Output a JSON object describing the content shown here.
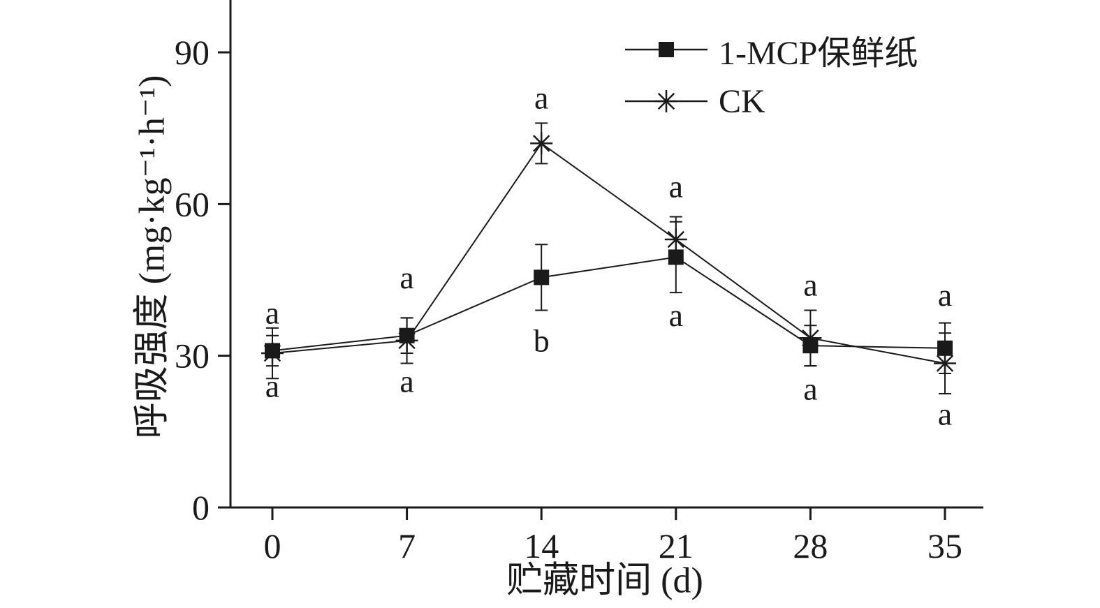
{
  "chart_data": {
    "type": "line",
    "title": "",
    "xlabel": "贮藏时间 (d)",
    "ylabel": "呼吸强度 (mg·kg⁻¹·h⁻¹)",
    "x": [
      0,
      7,
      14,
      21,
      28,
      35
    ],
    "xticks": [
      0,
      7,
      14,
      21,
      28,
      35
    ],
    "yticks": [
      0,
      30,
      60,
      90
    ],
    "ylim": [
      0,
      97
    ],
    "grid": false,
    "legend_position": "top-right",
    "axis_color": "#1a1a1a",
    "series": [
      {
        "name": "1-MCP保鲜纸",
        "marker": "square",
        "values": [
          31,
          34,
          45.5,
          49.5,
          32,
          31.5
        ],
        "errors": [
          3,
          3.5,
          6.5,
          7,
          4,
          5
        ]
      },
      {
        "name": "CK",
        "marker": "asterisk",
        "values": [
          30.5,
          33,
          72,
          53,
          33.5,
          28.5
        ],
        "errors": [
          5,
          4.5,
          4,
          4.5,
          5.5,
          6
        ]
      }
    ],
    "annotations": [
      {
        "x": 0,
        "y": 38.5,
        "text": "a"
      },
      {
        "x": 0,
        "y": 24,
        "text": "a"
      },
      {
        "x": 7,
        "y": 45.5,
        "text": "a"
      },
      {
        "x": 7,
        "y": 25,
        "text": "a"
      },
      {
        "x": 14,
        "y": 81,
        "text": "a"
      },
      {
        "x": 14,
        "y": 33,
        "text": "b"
      },
      {
        "x": 21,
        "y": 63.5,
        "text": "a"
      },
      {
        "x": 21,
        "y": 38,
        "text": "a"
      },
      {
        "x": 28,
        "y": 44,
        "text": "a"
      },
      {
        "x": 28,
        "y": 23.5,
        "text": "a"
      },
      {
        "x": 35,
        "y": 42,
        "text": "a"
      },
      {
        "x": 35,
        "y": 18.5,
        "text": "a"
      }
    ]
  }
}
